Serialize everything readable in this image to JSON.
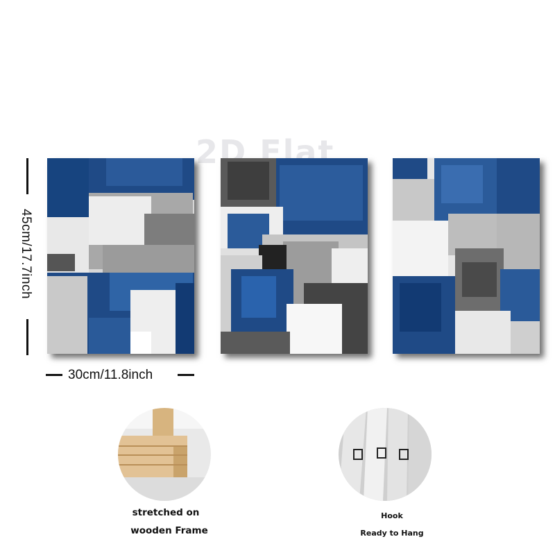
{
  "dimensions": {
    "height_label": "45cm/17.7inch",
    "width_label": "30cm/11.8inch"
  },
  "features": {
    "frame_caption_line1": "stretched on",
    "frame_caption_line2": "wooden Frame",
    "hook_caption_line1": "Hook",
    "hook_caption_line2": "Ready to Hang"
  },
  "colors": {
    "navy_blue": "#1f4a86",
    "deep_blue": "#123a73",
    "grey": "#8e8e8e",
    "charcoal": "#3c3c3c",
    "white": "#f4f4f4",
    "wood": "#d9b98a"
  }
}
